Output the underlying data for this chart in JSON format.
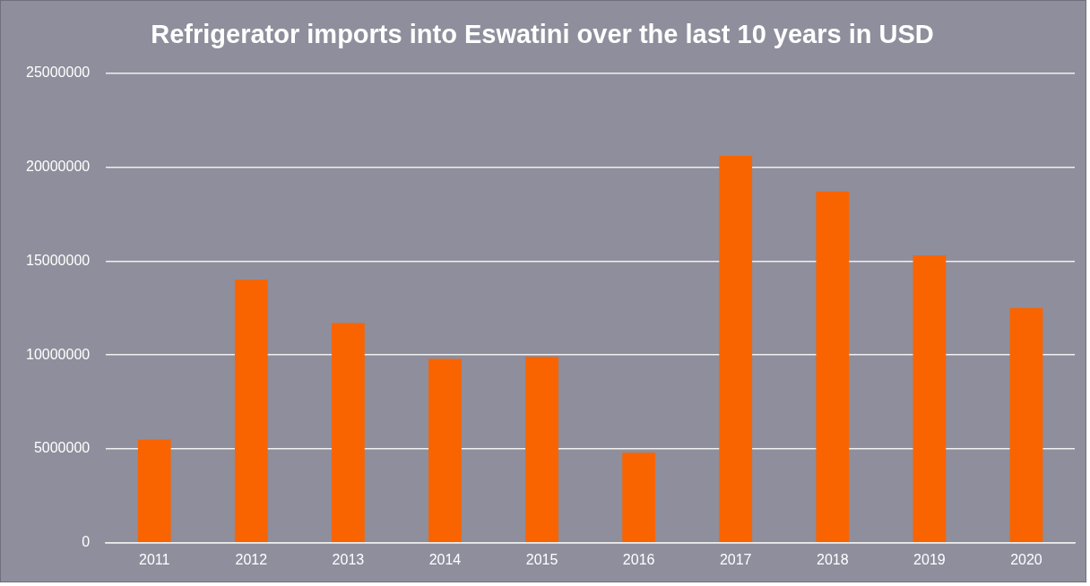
{
  "chart_data": {
    "type": "bar",
    "title": "Refrigerator imports into Eswatini over the last 10 years in USD",
    "categories": [
      "2011",
      "2012",
      "2013",
      "2014",
      "2015",
      "2016",
      "2017",
      "2018",
      "2019",
      "2020"
    ],
    "values": [
      5500000,
      14000000,
      11700000,
      9800000,
      9900000,
      4800000,
      20600000,
      18700000,
      15300000,
      12500000
    ],
    "color": "#f96400",
    "ylim": [
      0,
      25000000
    ],
    "yticks": [
      0,
      5000000,
      10000000,
      15000000,
      20000000,
      25000000
    ],
    "grid": "y",
    "legend": false
  }
}
